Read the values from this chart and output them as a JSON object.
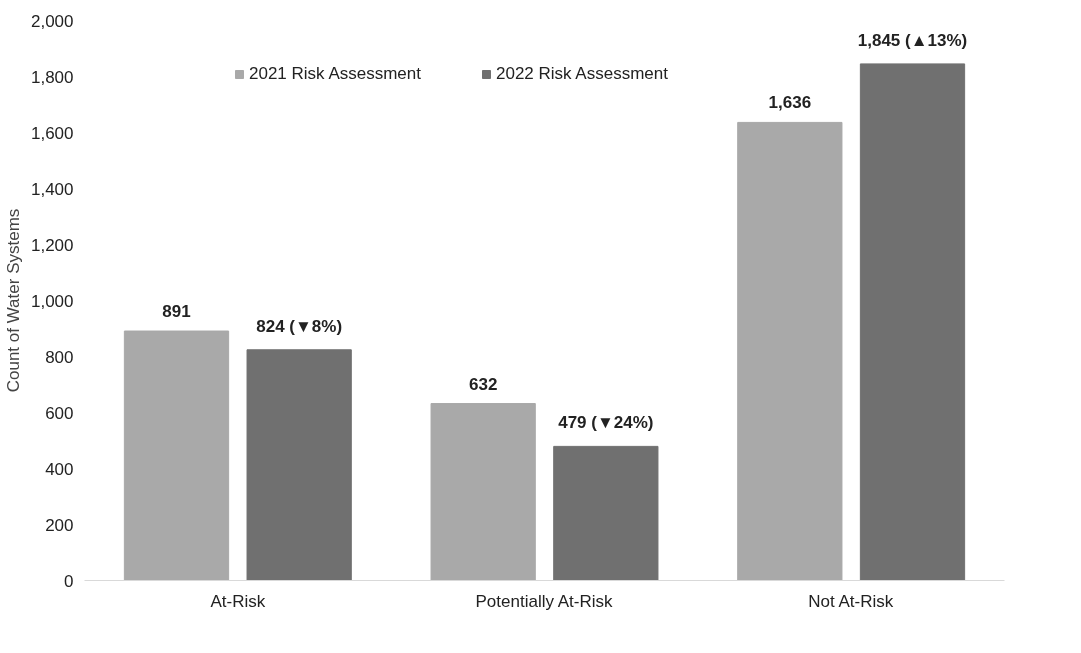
{
  "chart_data": {
    "type": "bar",
    "ylabel": "Count of Water Systems",
    "categories": [
      "At-Risk",
      "Potentially At-Risk",
      "Not At-Risk"
    ],
    "series": [
      {
        "name": "2021 Risk Assessment",
        "color": "#a9a9a9",
        "values": [
          891,
          632,
          1636
        ],
        "value_labels": [
          "891",
          "632",
          "1,636"
        ]
      },
      {
        "name": "2022 Risk Assessment",
        "color": "#707070",
        "values": [
          824,
          479,
          1845
        ],
        "value_labels": [
          "824 (▼8%)",
          "479 (▼24%)",
          "1,845 (▲13%)"
        ]
      }
    ],
    "ylim": [
      0,
      2000
    ],
    "yticks": [
      {
        "value": 0,
        "label": "0"
      },
      {
        "value": 200,
        "label": "200"
      },
      {
        "value": 400,
        "label": "400"
      },
      {
        "value": 600,
        "label": "600"
      },
      {
        "value": 800,
        "label": "800"
      },
      {
        "value": 1000,
        "label": "1,000"
      },
      {
        "value": 1200,
        "label": "1,200"
      },
      {
        "value": 1400,
        "label": "1,400"
      },
      {
        "value": 1600,
        "label": "1,600"
      },
      {
        "value": 1800,
        "label": "1,800"
      },
      {
        "value": 2000,
        "label": "2,000"
      }
    ],
    "grid": false,
    "legend": "top"
  }
}
